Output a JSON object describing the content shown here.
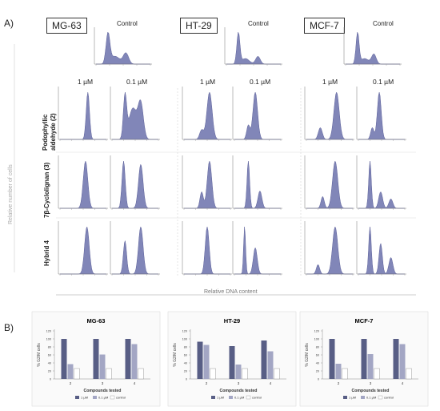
{
  "panel_a_label": "A)",
  "panel_b_label": "B)",
  "cell_lines": [
    "MG-63",
    "HT-29",
    "MCF-7"
  ],
  "control_label": "Control",
  "dose_labels": [
    "1 µM",
    "0.1 µM"
  ],
  "rows": [
    {
      "label_line1": "Podophyllic",
      "label_line2": "aldehyde (2)"
    },
    {
      "label_line1": "7β-Cyclolignan (3)",
      "label_line2": ""
    },
    {
      "label_line1": "Hybrid 4",
      "label_line2": ""
    }
  ],
  "y_axis_title": "Relative number of cells",
  "x_axis_title": "Relative DNA content",
  "colors": {
    "hist_fill": "#8186b8",
    "hist_stroke": "#5b5f99",
    "bar_1uM": "#585e85",
    "bar_01uM": "#a3a6c4",
    "bar_control": "#ffffff"
  },
  "chart_data": [
    {
      "type": "bar",
      "title": "MG-63",
      "categories": [
        "2",
        "3",
        "4"
      ],
      "series": [
        {
          "name": "1 µM",
          "values": [
            100,
            100,
            100
          ]
        },
        {
          "name": "0.1 µM",
          "values": [
            37,
            61,
            87
          ]
        },
        {
          "name": "control",
          "values": [
            26,
            26,
            26
          ]
        }
      ],
      "xlabel": "Compounds tested",
      "ylabel": "% G2/M cells",
      "ylim": [
        0,
        120
      ],
      "yticks": [
        "0",
        "20",
        "40",
        "60",
        "80",
        "100",
        "120"
      ]
    },
    {
      "type": "bar",
      "title": "HT-29",
      "categories": [
        "2",
        "3",
        "4"
      ],
      "series": [
        {
          "name": "1 µM",
          "values": [
            93,
            82,
            96
          ]
        },
        {
          "name": "0.1 µM",
          "values": [
            85,
            36,
            69
          ]
        },
        {
          "name": "control",
          "values": [
            26,
            26,
            26
          ]
        }
      ],
      "xlabel": "Compounds tested",
      "ylabel": "% G2/M cells",
      "ylim": [
        0,
        120
      ],
      "yticks": [
        "0",
        "20",
        "40",
        "60",
        "80",
        "100",
        "120"
      ]
    },
    {
      "type": "bar",
      "title": "MCF-7",
      "categories": [
        "2",
        "3",
        "4"
      ],
      "series": [
        {
          "name": "1 µM",
          "values": [
            100,
            100,
            100
          ]
        },
        {
          "name": "0.1 µM",
          "values": [
            38,
            62,
            87
          ]
        },
        {
          "name": "control",
          "values": [
            26,
            26,
            26
          ]
        }
      ],
      "xlabel": "Compounds tested",
      "ylabel": "% G2/M cells",
      "ylim": [
        0,
        120
      ],
      "yticks": [
        "0",
        "20",
        "40",
        "60",
        "80",
        "100",
        "120"
      ]
    }
  ]
}
